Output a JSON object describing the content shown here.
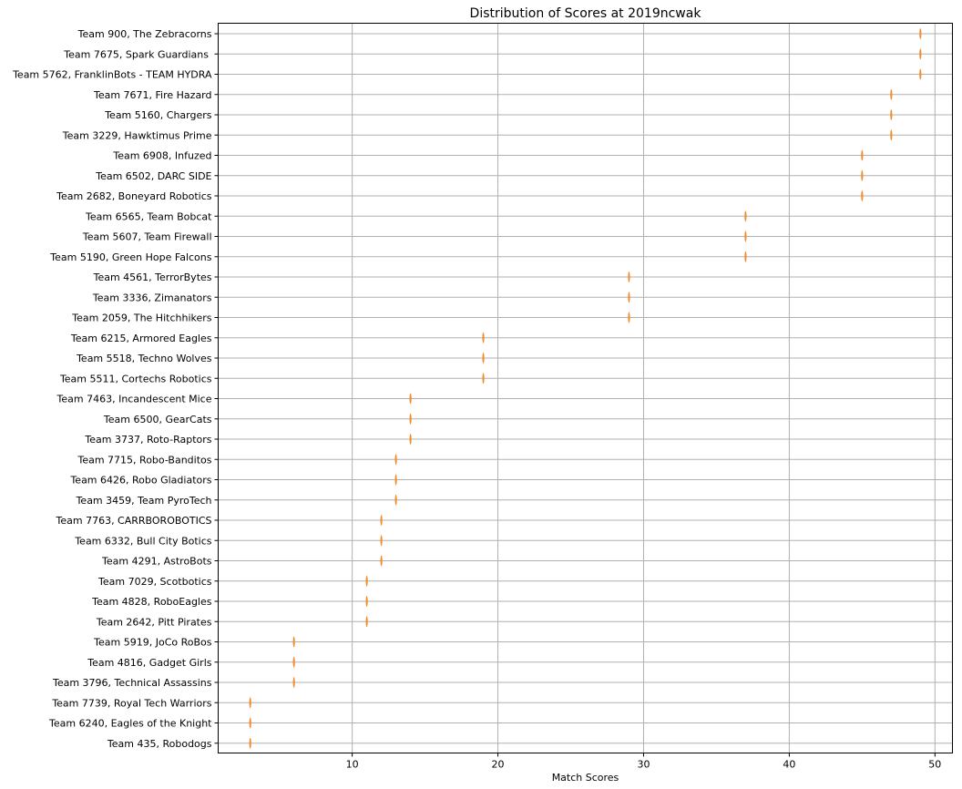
{
  "chart_data": {
    "type": "scatter",
    "title": "Distribution of Scores at 2019ncwak",
    "xlabel": "Match Scores",
    "ylabel": "",
    "xlim": [
      0.8,
      51.2
    ],
    "xticks": [
      10,
      20,
      30,
      40,
      50
    ],
    "grid": true,
    "marker_color": "#f28e2b",
    "grid_color": "#b0b0b0",
    "categories": [
      "Team 900, The Zebracorns",
      "Team 7675, Spark Guardians ",
      "Team 5762, FranklinBots - TEAM HYDRA",
      "Team 7671, Fire Hazard",
      "Team 5160, Chargers",
      "Team 3229, Hawktimus Prime",
      "Team 6908, Infuzed",
      "Team 6502, DARC SIDE",
      "Team 2682, Boneyard Robotics",
      "Team 6565, Team Bobcat",
      "Team 5607, Team Firewall",
      "Team 5190, Green Hope Falcons",
      "Team 4561, TerrorBytes",
      "Team 3336, Zimanators",
      "Team 2059, The Hitchhikers",
      "Team 6215, Armored Eagles",
      "Team 5518, Techno Wolves",
      "Team 5511, Cortechs Robotics",
      "Team 7463, Incandescent Mice",
      "Team 6500, GearCats",
      "Team 3737, Roto-Raptors",
      "Team 7715, Robo-Banditos",
      "Team 6426, Robo Gladiators",
      "Team 3459, Team PyroTech",
      "Team 7763, CARRBOROBOTICS",
      "Team 6332, Bull City Botics",
      "Team 4291, AstroBots",
      "Team 7029, Scotbotics",
      "Team 4828, RoboEagles",
      "Team 2642, Pitt Pirates",
      "Team 5919, JoCo RoBos",
      "Team 4816, Gadget Girls",
      "Team 3796, Technical Assassins",
      "Team 7739, Royal Tech Warriors",
      "Team 6240, Eagles of the Knight",
      "Team 435, Robodogs"
    ],
    "values": [
      49,
      49,
      49,
      47,
      47,
      47,
      45,
      45,
      45,
      37,
      37,
      37,
      29,
      29,
      29,
      19,
      19,
      19,
      14,
      14,
      14,
      13,
      13,
      13,
      12,
      12,
      12,
      11,
      11,
      11,
      6,
      6,
      6,
      3,
      3,
      3
    ]
  }
}
